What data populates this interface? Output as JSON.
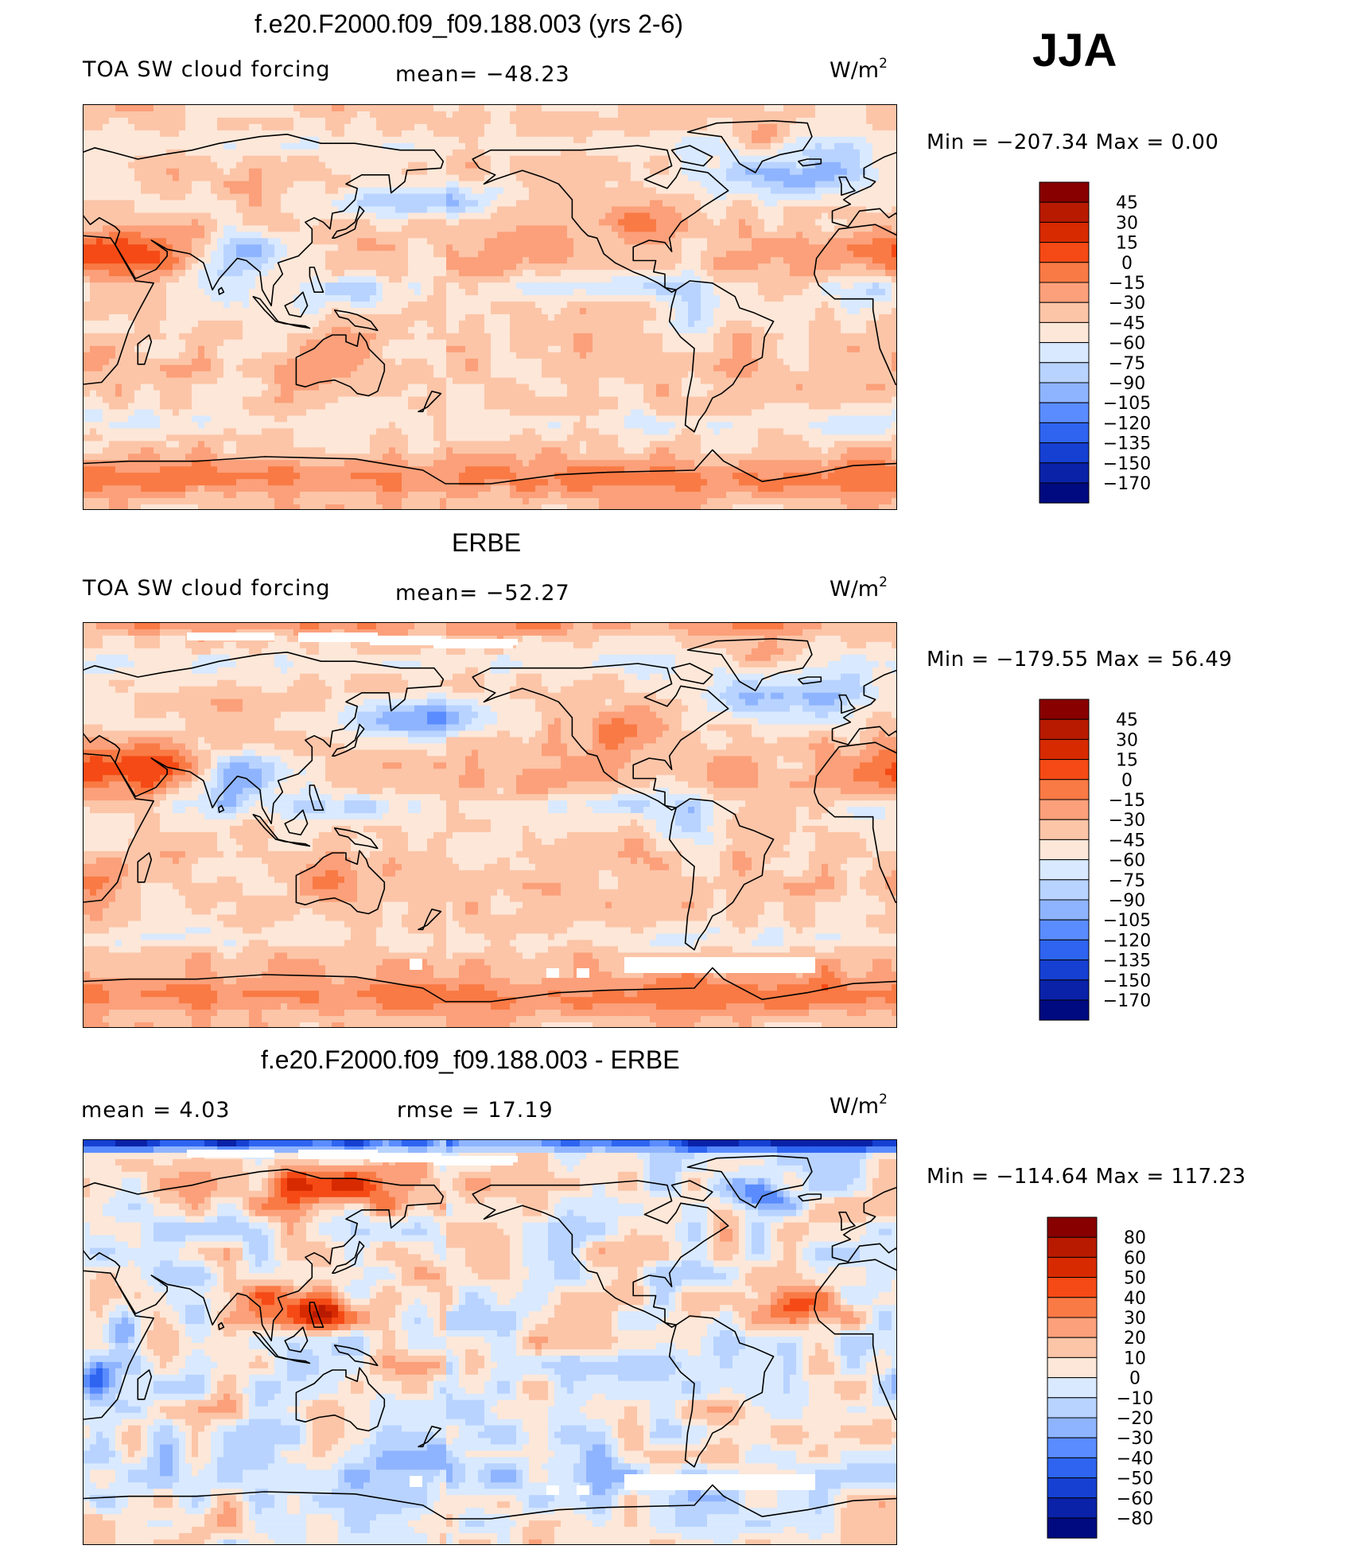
{
  "figure": {
    "season": "JJA",
    "units_base": "W/m",
    "units_exp": "2"
  },
  "chart_data": [
    {
      "type": "heatmap",
      "title": "f.e20.F2000.f09_f09.188.003 (yrs 2-6)",
      "variable": "TOA SW cloud forcing",
      "stat_text": "mean=  −48.23",
      "mean": -48.23,
      "min": -207.34,
      "max": 0.0,
      "minmax_text": "Min  =  −207.34  Max  =     0.00",
      "levels": [
        "45",
        "30",
        "15",
        "0",
        "−15",
        "−30",
        "−45",
        "−60",
        "−75",
        "−90",
        "−105",
        "−120",
        "−135",
        "−150",
        "−170"
      ],
      "colors": [
        "#880000",
        "#b81a00",
        "#d72a00",
        "#f54a15",
        "#f97a45",
        "#fba07a",
        "#fcc5a8",
        "#fde7d8",
        "#d9e9ff",
        "#b8d3ff",
        "#8fb4ff",
        "#5a8cff",
        "#2e64f0",
        "#1640d2",
        "#0a22a8",
        "#000a80"
      ]
    },
    {
      "type": "heatmap",
      "title": "ERBE",
      "variable": "TOA SW cloud forcing",
      "stat_text": "mean=  −52.27",
      "mean": -52.27,
      "min": -179.55,
      "max": 56.49,
      "minmax_text": "Min  =  −179.55  Max  =    56.49",
      "levels": [
        "45",
        "30",
        "15",
        "0",
        "−15",
        "−30",
        "−45",
        "−60",
        "−75",
        "−90",
        "−105",
        "−120",
        "−135",
        "−150",
        "−170"
      ],
      "colors": [
        "#880000",
        "#b81a00",
        "#d72a00",
        "#f54a15",
        "#f97a45",
        "#fba07a",
        "#fcc5a8",
        "#fde7d8",
        "#d9e9ff",
        "#b8d3ff",
        "#8fb4ff",
        "#5a8cff",
        "#2e64f0",
        "#1640d2",
        "#0a22a8",
        "#000a80"
      ]
    },
    {
      "type": "heatmap",
      "title": "f.e20.F2000.f09_f09.188.003 - ERBE",
      "stat_text": "mean  =     4.03",
      "rmse_text": "rmse  =    17.19",
      "mean": 4.03,
      "rmse": 17.19,
      "min": -114.64,
      "max": 117.23,
      "minmax_text": "Min  =  −114.64  Max  =  117.23",
      "levels": [
        "80",
        "60",
        "50",
        "40",
        "30",
        "20",
        "10",
        "0",
        "−10",
        "−20",
        "−30",
        "−40",
        "−50",
        "−60",
        "−80"
      ],
      "colors": [
        "#880000",
        "#b81a00",
        "#d72a00",
        "#f54a15",
        "#f97a45",
        "#fba07a",
        "#fcc5a8",
        "#fde7d8",
        "#d9e9ff",
        "#b8d3ff",
        "#8fb4ff",
        "#5a8cff",
        "#2e64f0",
        "#1640d2",
        "#0a22a8",
        "#000a80"
      ]
    }
  ]
}
